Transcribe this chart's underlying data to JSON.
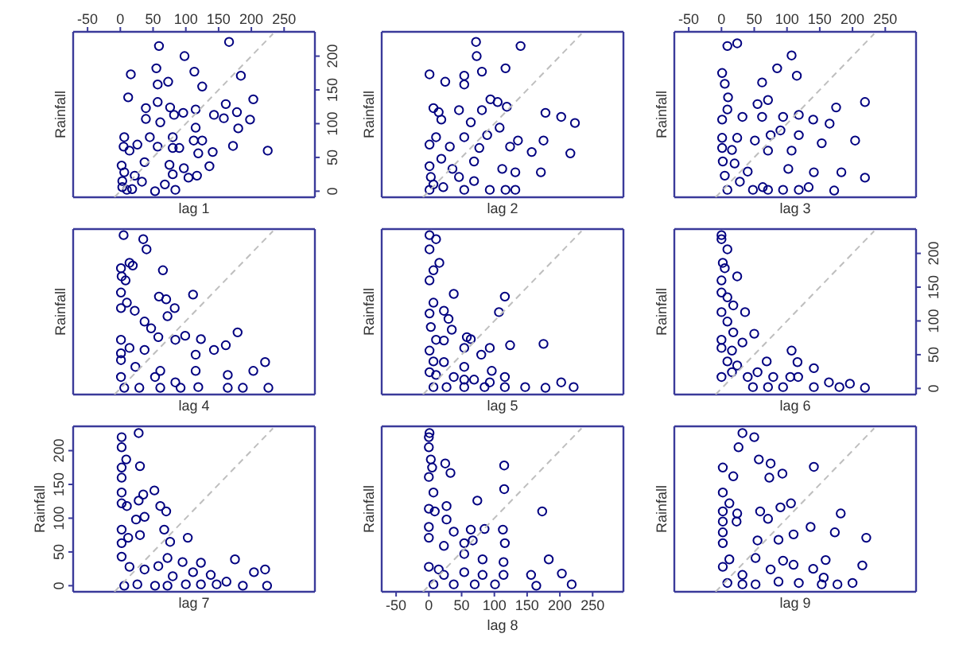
{
  "chart_data": [
    {
      "type": "scatter",
      "xlabel": "lag 1",
      "ylabel": "Rainfall",
      "xlim": [
        -72,
        297
      ],
      "ylim": [
        -9,
        236
      ],
      "xticks": [
        -50,
        0,
        50,
        100,
        150,
        200,
        250
      ],
      "yticks": [
        0,
        50,
        100,
        150,
        200
      ],
      "series": [
        {
          "marker": "circle",
          "color": "#000080",
          "x": [
            59,
            166,
            98,
            55,
            113,
            184,
            16,
            73,
            57,
            125,
            12,
            203,
            161,
            57,
            76,
            115,
            96,
            39,
            39,
            82,
            143,
            178,
            198,
            158,
            61,
            115,
            180,
            6,
            45,
            80,
            112,
            125,
            26,
            5,
            14,
            57,
            80,
            90,
            119,
            141,
            172,
            225,
            37,
            75,
            136,
            97,
            2,
            6,
            22,
            80,
            117,
            104,
            3,
            33,
            68,
            3,
            18,
            53,
            84,
            10
          ],
          "values": [
            215,
            221,
            200,
            182,
            177,
            171,
            173,
            162,
            158,
            155,
            139,
            136,
            129,
            132,
            124,
            121,
            116,
            123,
            107,
            113,
            113,
            117,
            106,
            108,
            102,
            94,
            93,
            80,
            80,
            80,
            75,
            75,
            69,
            66,
            60,
            66,
            64,
            64,
            56,
            58,
            67,
            60,
            43,
            39,
            37,
            34,
            38,
            28,
            23,
            25,
            23,
            20,
            15,
            14,
            10,
            6,
            3,
            0,
            2,
            2
          ]
        },
        {
          "type": "line",
          "color": "#bebebe",
          "line_style": "dashed",
          "x": [
            -9,
            233
          ],
          "values": [
            -9,
            233
          ]
        }
      ]
    },
    {
      "type": "scatter",
      "xlabel": "lag 2",
      "ylabel": "Rainfall",
      "xlim": [
        -72,
        297
      ],
      "ylim": [
        -9,
        236
      ],
      "tick_labels": false,
      "series": [
        {
          "marker": "circle",
          "color": "#000080",
          "x": [
            72,
            140,
            73,
            1,
            25,
            54,
            81,
            117,
            54,
            94,
            105,
            119,
            7,
            15,
            46,
            81,
            178,
            202,
            223,
            19,
            64,
            108,
            11,
            54,
            89,
            136,
            175,
            1,
            32,
            77,
            124,
            157,
            216,
            19,
            69,
            1,
            36,
            112,
            132,
            171,
            3,
            46,
            69,
            7,
            22,
            54,
            93,
            117,
            132,
            1
          ],
          "values": [
            221,
            215,
            200,
            173,
            162,
            171,
            177,
            182,
            158,
            136,
            132,
            125,
            123,
            117,
            120,
            120,
            116,
            110,
            101,
            106,
            102,
            94,
            80,
            80,
            83,
            75,
            75,
            69,
            66,
            64,
            66,
            58,
            56,
            48,
            44,
            37,
            33,
            33,
            28,
            28,
            21,
            21,
            15,
            10,
            6,
            2,
            2,
            2,
            2,
            2
          ]
        },
        {
          "type": "line",
          "color": "#bebebe",
          "line_style": "dashed",
          "x": [
            -9,
            233
          ],
          "values": [
            -9,
            233
          ]
        }
      ]
    },
    {
      "type": "scatter",
      "xlabel": "lag 3",
      "ylabel": "Rainfall",
      "xlim": [
        -72,
        297
      ],
      "ylim": [
        -9,
        236
      ],
      "xticks": [
        -50,
        0,
        50,
        100,
        150,
        200,
        250
      ],
      "tick_labels": "x",
      "series": [
        {
          "marker": "circle",
          "color": "#000080",
          "x": [
            9,
            24,
            85,
            107,
            115,
            1,
            5,
            10,
            62,
            71,
            55,
            9,
            32,
            62,
            94,
            118,
            140,
            175,
            219,
            1,
            1,
            24,
            51,
            75,
            90,
            118,
            165,
            204,
            1,
            16,
            71,
            107,
            153,
            2,
            20,
            40,
            102,
            141,
            183,
            219,
            5,
            28,
            48,
            71,
            94,
            118,
            172,
            9,
            63,
            133
          ],
          "values": [
            215,
            219,
            182,
            201,
            171,
            175,
            159,
            139,
            161,
            135,
            129,
            121,
            110,
            110,
            110,
            113,
            106,
            124,
            132,
            106,
            79,
            79,
            75,
            83,
            90,
            83,
            100,
            75,
            64,
            61,
            60,
            60,
            71,
            44,
            41,
            29,
            33,
            28,
            28,
            20,
            23,
            14,
            2,
            2,
            2,
            2,
            1,
            2,
            6,
            6
          ]
        },
        {
          "type": "line",
          "color": "#bebebe",
          "line_style": "dashed",
          "x": [
            -9,
            233
          ],
          "values": [
            -9,
            233
          ]
        }
      ]
    },
    {
      "type": "scatter",
      "xlabel": "lag 4",
      "ylabel": "Rainfall",
      "xlim": [
        -72,
        297
      ],
      "ylim": [
        -9,
        236
      ],
      "tick_labels": false,
      "series": [
        {
          "marker": "circle",
          "color": "#000080",
          "x": [
            5,
            35,
            40,
            14,
            19,
            1,
            65,
            2,
            8,
            1,
            59,
            70,
            111,
            83,
            72,
            10,
            22,
            1,
            37,
            47,
            58,
            84,
            99,
            123,
            179,
            1,
            1,
            14,
            37,
            115,
            143,
            161,
            1,
            23,
            61,
            115,
            203,
            221,
            164,
            1,
            53,
            84,
            6,
            29,
            61,
            92,
            119,
            164,
            187,
            226
          ],
          "values": [
            227,
            221,
            206,
            186,
            182,
            178,
            175,
            166,
            160,
            142,
            136,
            132,
            139,
            119,
            107,
            127,
            115,
            119,
            99,
            89,
            76,
            72,
            78,
            73,
            83,
            72,
            52,
            60,
            57,
            50,
            57,
            64,
            42,
            32,
            26,
            26,
            26,
            39,
            20,
            17,
            17,
            9,
            1,
            1,
            1,
            1,
            2,
            1,
            1,
            1
          ]
        },
        {
          "type": "line",
          "color": "#bebebe",
          "line_style": "dashed",
          "x": [
            -9,
            233
          ],
          "values": [
            -9,
            233
          ]
        }
      ]
    },
    {
      "type": "scatter",
      "xlabel": "lag 5",
      "ylabel": "Rainfall",
      "xlim": [
        -72,
        297
      ],
      "ylim": [
        -9,
        236
      ],
      "tick_labels": false,
      "series": [
        {
          "marker": "circle",
          "color": "#000080",
          "x": [
            1,
            11,
            1,
            16,
            7,
            1,
            38,
            116,
            7,
            23,
            1,
            30,
            3,
            35,
            11,
            23,
            58,
            64,
            1,
            54,
            93,
            124,
            175,
            107,
            7,
            23,
            54,
            80,
            96,
            1,
            11,
            38,
            69,
            116,
            7,
            27,
            54,
            85,
            116,
            147,
            178,
            202,
            221,
            54,
            93
          ],
          "values": [
            227,
            221,
            206,
            186,
            175,
            160,
            140,
            136,
            127,
            115,
            111,
            103,
            91,
            87,
            72,
            71,
            76,
            73,
            56,
            60,
            60,
            64,
            66,
            113,
            40,
            39,
            32,
            50,
            26,
            24,
            20,
            17,
            13,
            17,
            2,
            2,
            2,
            2,
            2,
            2,
            1,
            9,
            2,
            13,
            9
          ]
        },
        {
          "type": "line",
          "color": "#bebebe",
          "line_style": "dashed",
          "x": [
            -9,
            233
          ],
          "values": [
            -9,
            233
          ]
        }
      ]
    },
    {
      "type": "scatter",
      "xlabel": "lag 6",
      "ylabel": "Rainfall",
      "xlim": [
        -72,
        297
      ],
      "ylim": [
        -9,
        236
      ],
      "yticks": [
        0,
        50,
        100,
        150,
        200
      ],
      "tick_labels": "y",
      "series": [
        {
          "marker": "circle",
          "color": "#000080",
          "x": [
            0,
            0,
            9,
            2,
            24,
            5,
            0,
            0,
            9,
            18,
            36,
            0,
            9,
            18,
            32,
            0,
            0,
            16,
            50,
            107,
            9,
            24,
            69,
            116,
            141,
            0,
            40,
            79,
            117,
            164,
            196,
            48,
            71,
            94,
            141,
            180,
            219,
            16,
            55,
            105
          ],
          "values": [
            227,
            221,
            206,
            186,
            166,
            178,
            160,
            142,
            135,
            123,
            113,
            113,
            99,
            83,
            68,
            72,
            60,
            56,
            81,
            56,
            40,
            34,
            40,
            39,
            30,
            17,
            17,
            17,
            17,
            9,
            7,
            2,
            2,
            2,
            2,
            2,
            1,
            24,
            24,
            17
          ]
        },
        {
          "type": "line",
          "color": "#bebebe",
          "line_style": "dashed",
          "x": [
            -9,
            233
          ],
          "values": [
            -9,
            233
          ]
        }
      ]
    },
    {
      "type": "scatter",
      "xlabel": "lag 7",
      "ylabel": "Rainfall",
      "xlim": [
        -72,
        297
      ],
      "ylim": [
        -9,
        236
      ],
      "yticks": [
        0,
        50,
        100,
        150,
        200
      ],
      "tick_labels": "y",
      "series": [
        {
          "marker": "circle",
          "color": "#000080",
          "x": [
            2,
            28,
            2,
            9,
            2,
            30,
            2,
            2,
            52,
            35,
            28,
            2,
            10,
            61,
            70,
            24,
            37,
            2,
            2,
            12,
            30,
            67,
            76,
            103,
            2,
            14,
            37,
            58,
            72,
            95,
            123,
            175,
            204,
            221,
            80,
            111,
            138,
            162,
            6,
            26,
            53,
            72,
            100,
            123,
            147,
            187,
            224
          ],
          "values": [
            220,
            226,
            205,
            187,
            175,
            177,
            160,
            138,
            141,
            135,
            126,
            122,
            118,
            118,
            110,
            98,
            102,
            83,
            63,
            71,
            75,
            83,
            65,
            71,
            43,
            28,
            24,
            29,
            41,
            35,
            34,
            39,
            20,
            24,
            14,
            20,
            16,
            6,
            0,
            2,
            0,
            0,
            2,
            2,
            2,
            0,
            0
          ]
        },
        {
          "type": "line",
          "color": "#bebebe",
          "line_style": "dashed",
          "x": [
            -9,
            233
          ],
          "values": [
            -9,
            233
          ]
        }
      ]
    },
    {
      "type": "scatter",
      "xlabel": "lag 8",
      "ylabel": "Rainfall",
      "xlim": [
        -72,
        297
      ],
      "ylim": [
        -9,
        236
      ],
      "xticks": [
        -50,
        0,
        50,
        100,
        150,
        200,
        250
      ],
      "tick_labels": "x",
      "series": [
        {
          "marker": "circle",
          "color": "#000080",
          "x": [
            0,
            1,
            0,
            3,
            5,
            25,
            33,
            0,
            7,
            0,
            9,
            115,
            115,
            173,
            27,
            27,
            38,
            64,
            74,
            0,
            0,
            23,
            54,
            85,
            113,
            116,
            0,
            15,
            54,
            67,
            82,
            114,
            183,
            203,
            23,
            54,
            82,
            114,
            156,
            7,
            38,
            70,
            101,
            164,
            218
          ],
          "values": [
            220,
            226,
            205,
            187,
            175,
            181,
            167,
            161,
            138,
            114,
            110,
            178,
            143,
            110,
            118,
            98,
            80,
            83,
            126,
            87,
            71,
            59,
            63,
            84,
            83,
            63,
            28,
            24,
            47,
            67,
            39,
            35,
            39,
            18,
            16,
            20,
            16,
            16,
            16,
            2,
            2,
            2,
            2,
            0,
            2
          ]
        },
        {
          "type": "line",
          "color": "#bebebe",
          "line_style": "dashed",
          "x": [
            -9,
            233
          ],
          "values": [
            -9,
            233
          ]
        }
      ]
    },
    {
      "type": "scatter",
      "xlabel": "lag 9",
      "ylabel": "Rainfall",
      "xlim": [
        -72,
        297
      ],
      "ylim": [
        -9,
        236
      ],
      "tick_labels": false,
      "series": [
        {
          "marker": "circle",
          "color": "#000080",
          "x": [
            32,
            50,
            26,
            57,
            75,
            2,
            18,
            93,
            141,
            73,
            2,
            2,
            12,
            24,
            59,
            90,
            106,
            182,
            2,
            23,
            71,
            2,
            2,
            55,
            87,
            110,
            136,
            173,
            221,
            12,
            52,
            75,
            94,
            110,
            140,
            159,
            215,
            2,
            9,
            32,
            52,
            87,
            118,
            153,
            177,
            200,
            156,
            32
          ],
          "values": [
            226,
            220,
            205,
            187,
            181,
            175,
            162,
            166,
            176,
            160,
            138,
            110,
            122,
            107,
            110,
            116,
            122,
            107,
            95,
            95,
            99,
            79,
            63,
            67,
            68,
            76,
            87,
            79,
            71,
            39,
            41,
            24,
            37,
            31,
            25,
            38,
            30,
            28,
            4,
            2,
            2,
            6,
            4,
            2,
            2,
            4,
            12,
            16
          ]
        },
        {
          "type": "line",
          "color": "#bebebe",
          "line_style": "dashed",
          "x": [
            -9,
            233
          ],
          "values": [
            -9,
            233
          ]
        }
      ]
    }
  ]
}
